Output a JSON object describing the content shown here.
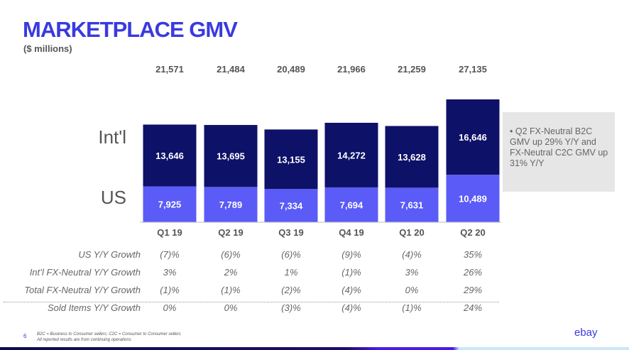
{
  "title": "MARKETPLACE GMV",
  "subtitle": "($ millions)",
  "chart_data": {
    "type": "bar",
    "stacked": true,
    "categories": [
      "Q1 19",
      "Q2 19",
      "Q3 19",
      "Q4 19",
      "Q1 20",
      "Q2 20"
    ],
    "series": [
      {
        "name": "US",
        "values": [
          7925,
          7789,
          7334,
          7694,
          7631,
          10489
        ],
        "color": "#5b5bf7"
      },
      {
        "name": "Int'l",
        "values": [
          13646,
          13695,
          13155,
          14272,
          13628,
          16646
        ],
        "color": "#0e1168"
      }
    ],
    "totals_labels": [
      "21,571",
      "21,484",
      "20,489",
      "21,966",
      "21,259",
      "27,135"
    ],
    "us_labels": [
      "7,925",
      "7,789",
      "7,334",
      "7,694",
      "7,631",
      "10,489"
    ],
    "intl_labels": [
      "13,646",
      "13,695",
      "13,155",
      "14,272",
      "13,628",
      "16,646"
    ]
  },
  "note": "Q2 FX-Neutral B2C GMV up 29% Y/Y and FX-Neutral C2C GMV up 31% Y/Y",
  "table": [
    {
      "label": "US Y/Y Growth",
      "values": [
        "(7)%",
        "(6)%",
        "(6)%",
        "(9)%",
        "(4)%",
        "35%"
      ]
    },
    {
      "label": "Int’l FX-Neutral Y/Y Growth",
      "values": [
        "3%",
        "2%",
        "1%",
        "(1)%",
        "3%",
        "26%"
      ]
    },
    {
      "label": "Total FX-Neutral Y/Y Growth",
      "values": [
        "(1)%",
        "(1)%",
        "(2)%",
        "(4)%",
        "0%",
        "29%"
      ]
    },
    {
      "label": "Sold Items Y/Y Growth",
      "values": [
        "0%",
        "0%",
        "(3)%",
        "(4)%",
        "(1)%",
        "24%"
      ]
    }
  ],
  "page_number": "6",
  "footnote1": "B2C = Business to Consumer sellers; C2C = Consumer to Consumer sellers",
  "footnote2": "All reported results are from continuing operations",
  "logo": "ebay"
}
